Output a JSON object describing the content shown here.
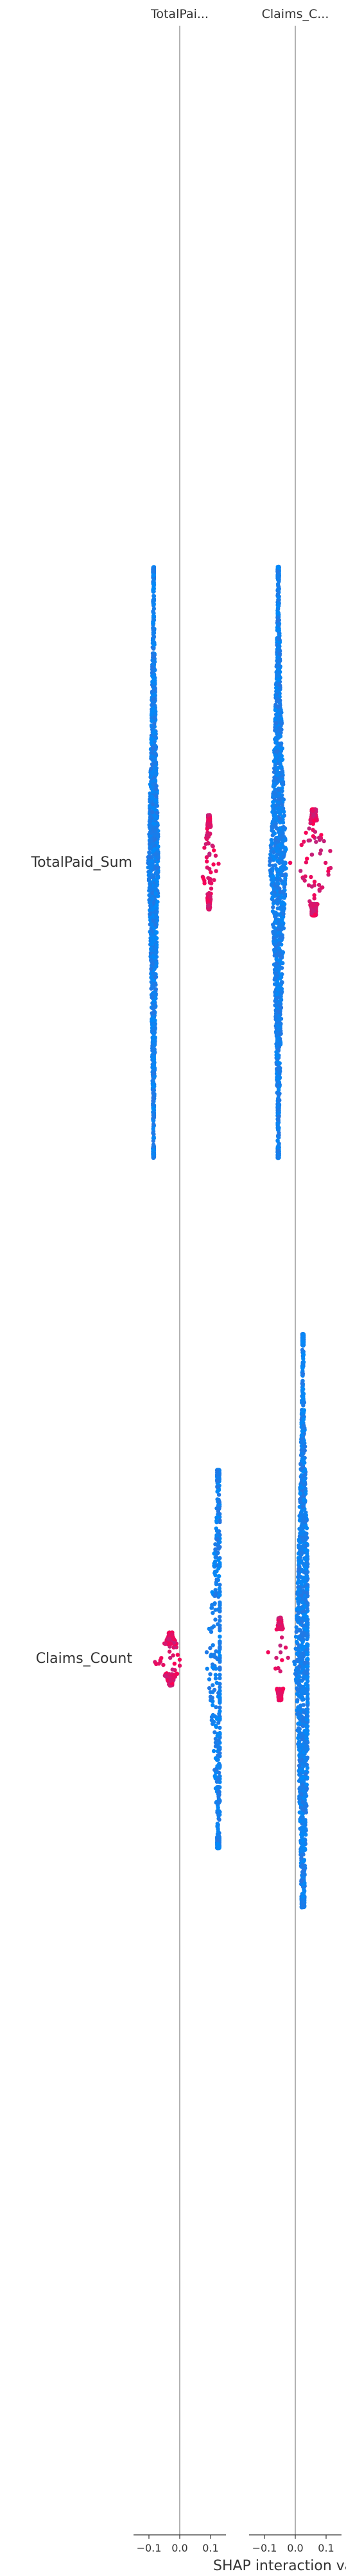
{
  "chart_data": {
    "type": "scatter",
    "title": "",
    "xlabel": "SHAP interaction va",
    "column_titles": [
      "TotalPai...",
      "Claims_C..."
    ],
    "row_labels": [
      "TotalPaid_Sum",
      "Claims_Count"
    ],
    "x_ticks": [
      [
        "−0.1",
        "0.0",
        "0.1"
      ],
      [
        "−0.1",
        "0.0",
        "0.1"
      ]
    ],
    "x_tick_values": [
      -0.1,
      0.0,
      0.1
    ],
    "xlim": [
      -0.15,
      0.15
    ],
    "color_low": "#008bfb",
    "color_high": "#ff0052",
    "zero_line_color": "#999999",
    "cells": [
      {
        "row": 0,
        "col": 0,
        "groups": [
          {
            "x_range": [
              -0.11,
              -0.07
            ],
            "x_peak": -0.085,
            "spread": 3.0,
            "extent": [
              -0.5,
              0.5
            ],
            "n": 1500,
            "color": "low"
          },
          {
            "x_range": [
              0.05,
              0.13
            ],
            "x_peak": 0.095,
            "spread": 3.0,
            "extent": [
              -0.08,
              0.08
            ],
            "n": 300,
            "color": "high"
          }
        ]
      },
      {
        "row": 0,
        "col": 1,
        "groups": [
          {
            "x_range": [
              -0.09,
              -0.03
            ],
            "x_peak": -0.055,
            "spread": 3.0,
            "extent": [
              -0.5,
              0.5
            ],
            "n": 1500,
            "color": "low"
          },
          {
            "x_range": [
              -0.04,
              0.14
            ],
            "x_peak": 0.06,
            "spread": 1.8,
            "extent": [
              -0.09,
              0.09
            ],
            "n": 450,
            "color": "high"
          }
        ]
      },
      {
        "row": 1,
        "col": 0,
        "groups": [
          {
            "x_range": [
              0.04,
              0.13
            ],
            "x_peak": 0.125,
            "spread": 1.6,
            "extent": [
              -0.32,
              0.32
            ],
            "n": 850,
            "color": "low"
          },
          {
            "x_range": [
              -0.15,
              0.0
            ],
            "x_peak": -0.03,
            "spread": 2.4,
            "extent": [
              -0.045,
              0.045
            ],
            "n": 300,
            "color": "high"
          }
        ]
      },
      {
        "row": 1,
        "col": 1,
        "groups": [
          {
            "x_range": [
              -0.02,
              0.04
            ],
            "x_peak": 0.025,
            "spread": 3.0,
            "extent": [
              -0.55,
              0.42
            ],
            "n": 1400,
            "color": "low"
          },
          {
            "x_range": [
              -0.14,
              -0.02
            ],
            "x_peak": -0.05,
            "spread": 1.6,
            "extent": [
              -0.07,
              0.07
            ],
            "n": 300,
            "color": "high"
          }
        ]
      }
    ]
  }
}
